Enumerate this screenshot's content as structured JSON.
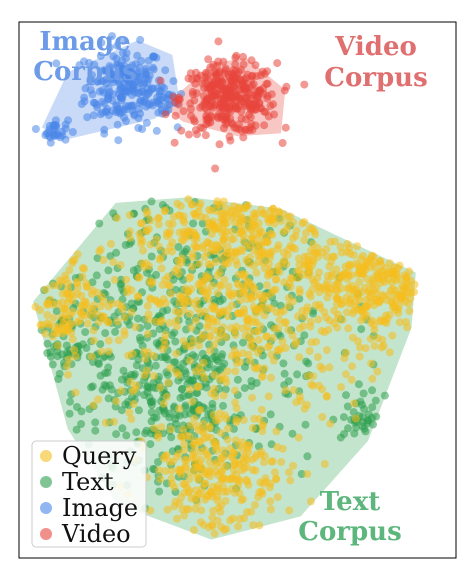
{
  "chart_data": {
    "type": "scatter",
    "title": "",
    "xlabel": "",
    "ylabel": "",
    "grid": false,
    "axes_ticks": false,
    "legend_position": "bottom-left",
    "series": [
      {
        "name": "Query",
        "color": "#F5BE1E"
      },
      {
        "name": "Text",
        "color": "#2E9E4F"
      },
      {
        "name": "Image",
        "color": "#4A86E8"
      },
      {
        "name": "Video",
        "color": "#E8453C"
      }
    ],
    "regions": [
      {
        "name": "Image Corpus",
        "label_lines": [
          "Image",
          "Corpus"
        ],
        "fill": "#4A86E8",
        "label_color": "#6C9BE8",
        "hull": [
          [
            -0.78,
            0.83
          ],
          [
            -0.46,
            0.94
          ],
          [
            -0.3,
            0.89
          ],
          [
            -0.27,
            0.75
          ],
          [
            -0.38,
            0.67
          ],
          [
            -0.78,
            0.6
          ],
          [
            -0.9,
            0.64
          ]
        ]
      },
      {
        "name": "Video Corpus",
        "label_lines": [
          "Video",
          "Corpus"
        ],
        "fill": "#E8453C",
        "label_color": "#E07070",
        "hull": [
          [
            -0.34,
            0.71
          ],
          [
            -0.12,
            0.86
          ],
          [
            0.04,
            0.88
          ],
          [
            0.22,
            0.77
          ],
          [
            0.2,
            0.62
          ],
          [
            0.0,
            0.61
          ],
          [
            -0.25,
            0.66
          ]
        ]
      },
      {
        "name": "Text Corpus",
        "label_lines": [
          "Text",
          "Corpus"
        ],
        "fill": "#3AAA5A",
        "label_color": "#5DB77D",
        "hull": [
          [
            -0.94,
            0.04
          ],
          [
            -0.56,
            0.38
          ],
          [
            -0.22,
            0.4
          ],
          [
            0.2,
            0.36
          ],
          [
            0.45,
            0.27
          ],
          [
            0.82,
            0.14
          ],
          [
            0.8,
            -0.05
          ],
          [
            0.6,
            -0.44
          ],
          [
            0.29,
            -0.7
          ],
          [
            -0.12,
            -0.78
          ],
          [
            -0.55,
            -0.66
          ],
          [
            -0.78,
            -0.4
          ]
        ]
      }
    ],
    "clusters": [
      {
        "series": "Image",
        "center": [
          -0.52,
          0.78
        ],
        "spread": [
          0.09,
          0.07
        ],
        "count": 220
      },
      {
        "series": "Image",
        "center": [
          -0.84,
          0.63
        ],
        "spread": [
          0.03,
          0.02
        ],
        "count": 30
      },
      {
        "series": "Image",
        "center": [
          -0.33,
          0.73
        ],
        "spread": [
          0.04,
          0.03
        ],
        "count": 30
      },
      {
        "series": "Video",
        "center": [
          -0.04,
          0.74
        ],
        "spread": [
          0.11,
          0.06
        ],
        "count": 340
      },
      {
        "series": "Query",
        "center": [
          -0.02,
          0.08
        ],
        "spread": [
          0.38,
          0.24
        ],
        "count": 650
      },
      {
        "series": "Query",
        "center": [
          0.65,
          0.12
        ],
        "spread": [
          0.17,
          0.1
        ],
        "count": 230
      },
      {
        "series": "Query",
        "center": [
          -0.1,
          -0.55
        ],
        "spread": [
          0.16,
          0.12
        ],
        "count": 260
      },
      {
        "series": "Query",
        "center": [
          -0.8,
          0.02
        ],
        "spread": [
          0.1,
          0.08
        ],
        "count": 100
      },
      {
        "series": "Query",
        "center": [
          0.0,
          0.3
        ],
        "spread": [
          0.18,
          0.08
        ],
        "count": 120
      },
      {
        "series": "Text",
        "center": [
          -0.25,
          0.0
        ],
        "spread": [
          0.34,
          0.3
        ],
        "count": 420
      },
      {
        "series": "Text",
        "center": [
          -0.32,
          -0.3
        ],
        "spread": [
          0.18,
          0.15
        ],
        "count": 200
      },
      {
        "series": "Text",
        "center": [
          -0.8,
          -0.12
        ],
        "spread": [
          0.06,
          0.05
        ],
        "count": 40
      },
      {
        "series": "Text",
        "center": [
          0.58,
          -0.36
        ],
        "spread": [
          0.05,
          0.04
        ],
        "count": 35
      }
    ],
    "xlim": [
      -1.0,
      1.0
    ],
    "ylim": [
      -0.84,
      1.0
    ]
  }
}
